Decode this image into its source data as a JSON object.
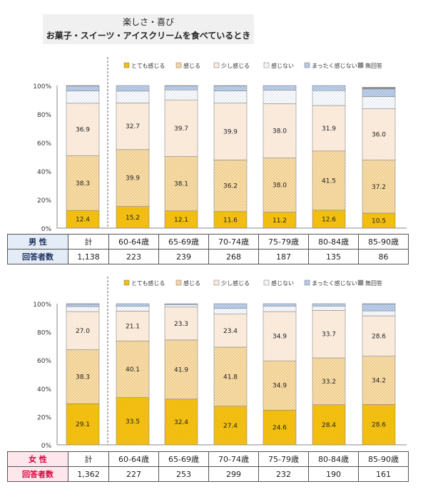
{
  "title": {
    "line1": "楽しさ・喜び",
    "line2": "お菓子・スイーツ・アイスクリームを食べているとき"
  },
  "legend": [
    "とても感じる",
    "感じる",
    "少し感じる",
    "感じない",
    "まったく感じない",
    "無回答"
  ],
  "colors": {
    "とても感じる": "#f7c518",
    "感じる": "#fbe3b4",
    "少し感じる": "#fdf0e4",
    "感じない": "#ffffff",
    "まったく感じない": "#c5d6ee",
    "無回答": "#9a9a9a"
  },
  "yticks": [
    "0%",
    "20%",
    "40%",
    "60%",
    "80%",
    "100%"
  ],
  "chart_data": [
    {
      "type": "bar",
      "title": "男 性",
      "categories": [
        "計",
        "60-64歳",
        "65-69歳",
        "70-74歳",
        "75-79歳",
        "80-84歳",
        "85-90歳"
      ],
      "ylim": [
        0,
        100
      ],
      "stacked": true,
      "series": [
        {
          "name": "とても感じる",
          "values": [
            12.4,
            15.2,
            12.1,
            11.6,
            11.2,
            12.6,
            10.5
          ]
        },
        {
          "name": "感じる",
          "values": [
            38.3,
            39.9,
            38.1,
            36.2,
            38.0,
            41.5,
            37.2
          ]
        },
        {
          "name": "少し感じる",
          "values": [
            36.9,
            32.7,
            39.7,
            39.9,
            38.0,
            31.9,
            36.0
          ]
        },
        {
          "name": "感じない",
          "values": [
            8.6,
            8.3,
            7.0,
            8.5,
            9.6,
            10.4,
            8.5
          ]
        },
        {
          "name": "まったく感じない",
          "values": [
            3.5,
            3.9,
            2.9,
            3.6,
            3.2,
            3.6,
            5.4
          ]
        },
        {
          "name": "無回答",
          "values": [
            0.3,
            0.0,
            0.2,
            0.2,
            0.0,
            0.0,
            1.2
          ]
        }
      ],
      "respondents_label": "回答者数",
      "respondents": [
        "1,138",
        "223",
        "239",
        "268",
        "187",
        "135",
        "86"
      ]
    },
    {
      "type": "bar",
      "title": "女 性",
      "categories": [
        "計",
        "60-64歳",
        "65-69歳",
        "70-74歳",
        "75-79歳",
        "80-84歳",
        "85-90歳"
      ],
      "ylim": [
        0,
        100
      ],
      "stacked": true,
      "series": [
        {
          "name": "とても感じる",
          "values": [
            29.1,
            33.5,
            32.4,
            27.4,
            24.6,
            28.4,
            28.6
          ]
        },
        {
          "name": "感じる",
          "values": [
            38.3,
            40.1,
            41.9,
            41.8,
            34.9,
            33.2,
            34.2
          ]
        },
        {
          "name": "少し感じる",
          "values": [
            27.0,
            21.1,
            23.3,
            23.4,
            34.9,
            33.7,
            28.6
          ]
        },
        {
          "name": "感じない",
          "values": [
            3.6,
            3.5,
            1.6,
            4.0,
            3.9,
            3.0,
            3.5
          ]
        },
        {
          "name": "まったく感じない",
          "values": [
            1.8,
            1.8,
            0.8,
            3.4,
            1.7,
            1.7,
            4.9
          ]
        },
        {
          "name": "無回答",
          "values": [
            0.2,
            0.0,
            0.0,
            0.0,
            0.0,
            0.0,
            0.2
          ]
        }
      ],
      "respondents_label": "回答者数",
      "respondents": [
        "1,362",
        "227",
        "253",
        "299",
        "232",
        "190",
        "161"
      ]
    }
  ]
}
